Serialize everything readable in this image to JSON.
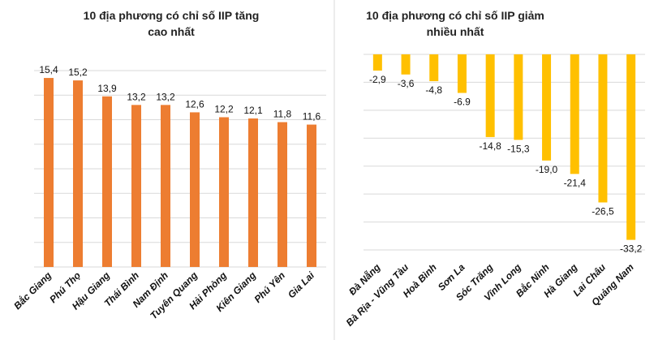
{
  "chart_data": [
    {
      "type": "bar",
      "title": "10 địa phương có chỉ số IIP tăng cao nhất",
      "title_lines": [
        "10 địa phương có chỉ số IIP tăng",
        "cao nhất"
      ],
      "categories": [
        "Bắc Giang",
        "Phú Thọ",
        "Hậu Giang",
        "Thái Bình",
        "Nam Định",
        "Tuyên Quang",
        "Hải Phòng",
        "Kiên Giang",
        "Phú Yên",
        "Gia Lai"
      ],
      "values": [
        15.4,
        15.2,
        13.9,
        13.2,
        13.2,
        12.6,
        12.2,
        12.1,
        11.8,
        11.6
      ],
      "data_labels": [
        "15,4",
        "15,2",
        "13,9",
        "13,2",
        "13,2",
        "12,6",
        "12,2",
        "12,1",
        "11,8",
        "11,6"
      ],
      "ylim": [
        0,
        16
      ],
      "grid_step": 2,
      "grid": true,
      "color": "#ED7D31"
    },
    {
      "type": "bar",
      "title": "10 địa phương có chỉ số IIP giảm nhiều nhất",
      "title_lines": [
        "10 địa phương có chỉ số IIP giảm",
        "nhiều nhất"
      ],
      "categories": [
        "Đà Nẵng",
        "Bà Rịa - Vũng Tàu",
        "Hoà Bình",
        "Sơn La",
        "Sóc Trăng",
        "Vĩnh Long",
        "Bắc Ninh",
        "Hà Giang",
        "Lai Châu",
        "Quảng Nam"
      ],
      "values": [
        -2.9,
        -3.6,
        -4.8,
        -6.9,
        -14.8,
        -15.3,
        -19.0,
        -21.4,
        -26.5,
        -33.2
      ],
      "data_labels": [
        "-2,9",
        "-3,6",
        "-4,8",
        "-6.9",
        "-14,8",
        "-15,3",
        "-19,0",
        "-21,4",
        "-26,5",
        "-33,2"
      ],
      "ylim": [
        -35,
        0
      ],
      "grid_step": 5,
      "grid": true,
      "color": "#FFC000"
    }
  ]
}
